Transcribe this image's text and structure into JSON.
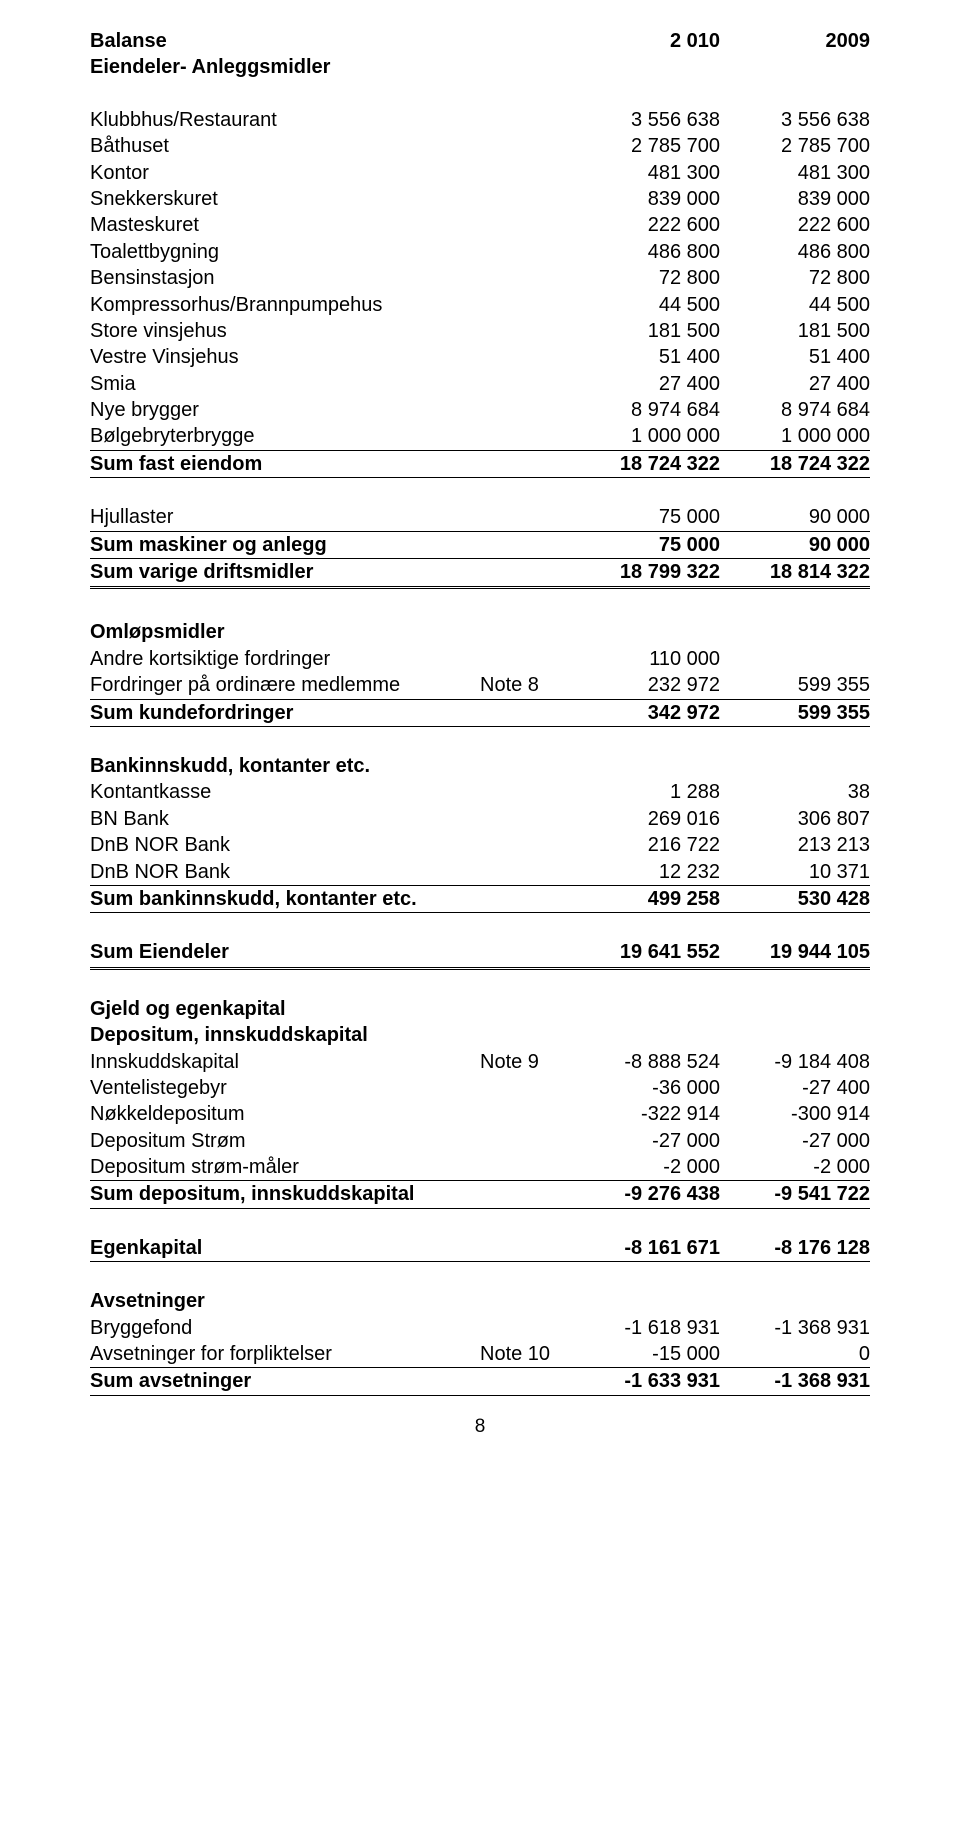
{
  "header": {
    "title": "Balanse",
    "subtitle": "Eiendeler- Anleggsmidler",
    "col1": "2 010",
    "col2": "2009"
  },
  "fixed_assets": {
    "rows": [
      {
        "label": "Klubbhus/Restaurant",
        "c1": "3 556 638",
        "c2": "3 556 638"
      },
      {
        "label": "Båthuset",
        "c1": "2 785 700",
        "c2": "2 785 700"
      },
      {
        "label": "Kontor",
        "c1": "481 300",
        "c2": "481 300"
      },
      {
        "label": "Snekkerskuret",
        "c1": "839 000",
        "c2": "839 000"
      },
      {
        "label": "Masteskuret",
        "c1": "222 600",
        "c2": "222 600"
      },
      {
        "label": "Toalettbygning",
        "c1": "486 800",
        "c2": "486 800"
      },
      {
        "label": "Bensinstasjon",
        "c1": "72 800",
        "c2": "72 800"
      },
      {
        "label": "Kompressorhus/Brannpumpehus",
        "c1": "44 500",
        "c2": "44 500"
      },
      {
        "label": "Store vinsjehus",
        "c1": "181 500",
        "c2": "181 500"
      },
      {
        "label": "Vestre Vinsjehus",
        "c1": "51 400",
        "c2": "51 400"
      },
      {
        "label": "Smia",
        "c1": "27 400",
        "c2": "27 400"
      },
      {
        "label": "Nye brygger",
        "c1": "8 974 684",
        "c2": "8 974 684"
      },
      {
        "label": "Bølgebryterbrygge",
        "c1": "1 000 000",
        "c2": "1 000 000"
      }
    ],
    "sum": {
      "label": "Sum fast eiendom",
      "c1": "18 724 322",
      "c2": "18 724 322"
    }
  },
  "machinery": {
    "rows": [
      {
        "label": "Hjullaster",
        "c1": "75 000",
        "c2": "90 000"
      }
    ],
    "sum1": {
      "label": "Sum maskiner og anlegg",
      "c1": "75 000",
      "c2": "90 000"
    },
    "sum2": {
      "label": "Sum varige driftsmidler",
      "c1": "18 799 322",
      "c2": "18 814 322"
    }
  },
  "current": {
    "heading": "Omløpsmidler",
    "rows": [
      {
        "label": "Andre kortsiktige fordringer",
        "note": "",
        "c1": "110 000",
        "c2": ""
      },
      {
        "label": "Fordringer på ordinære medlemme",
        "note": "Note 8",
        "c1": "232 972",
        "c2": "599 355"
      }
    ],
    "sum": {
      "label": "Sum kundefordringer",
      "c1": "342 972",
      "c2": "599 355"
    }
  },
  "bank": {
    "heading": "Bankinnskudd, kontanter etc.",
    "rows": [
      {
        "label": "Kontantkasse",
        "c1": "1 288",
        "c2": "38"
      },
      {
        "label": "BN Bank",
        "c1": "269 016",
        "c2": "306 807"
      },
      {
        "label": "DnB NOR Bank",
        "c1": "216 722",
        "c2": "213 213"
      },
      {
        "label": "DnB NOR Bank",
        "c1": "12 232",
        "c2": "10 371"
      }
    ],
    "sum": {
      "label": "Sum bankinnskudd, kontanter etc.",
      "c1": "499 258",
      "c2": "530 428"
    }
  },
  "sum_eiendeler": {
    "label": "Sum Eiendeler",
    "c1": "19 641 552",
    "c2": "19 944 105"
  },
  "equity": {
    "heading1": "Gjeld og egenkapital",
    "heading2": "Depositum, innskuddskapital",
    "rows": [
      {
        "label": "Innskuddskapital",
        "note": "Note 9",
        "c1": "-8 888 524",
        "c2": "-9 184 408"
      },
      {
        "label": "Ventelistegebyr",
        "note": "",
        "c1": "-36 000",
        "c2": "-27 400"
      },
      {
        "label": "Nøkkeldepositum",
        "note": "",
        "c1": "-322 914",
        "c2": "-300 914"
      },
      {
        "label": "Depositum Strøm",
        "note": "",
        "c1": "-27 000",
        "c2": "-27 000"
      },
      {
        "label": "Depositum strøm-måler",
        "note": "",
        "c1": "-2 000",
        "c2": "-2 000"
      }
    ],
    "sum": {
      "label": "Sum depositum, innskuddskapital",
      "c1": "-9 276 438",
      "c2": "-9 541 722"
    }
  },
  "egenkapital": {
    "label": "Egenkapital",
    "c1": "-8 161 671",
    "c2": "-8 176 128"
  },
  "provisions": {
    "heading": "Avsetninger",
    "rows": [
      {
        "label": "Bryggefond",
        "note": "",
        "c1": "-1 618 931",
        "c2": "-1 368 931"
      },
      {
        "label": "Avsetninger for forpliktelser",
        "note": "Note 10",
        "c1": "-15 000",
        "c2": "0"
      }
    ],
    "sum": {
      "label": "Sum avsetninger",
      "c1": "-1 633 931",
      "c2": "-1 368 931"
    }
  },
  "pagenum": "8"
}
